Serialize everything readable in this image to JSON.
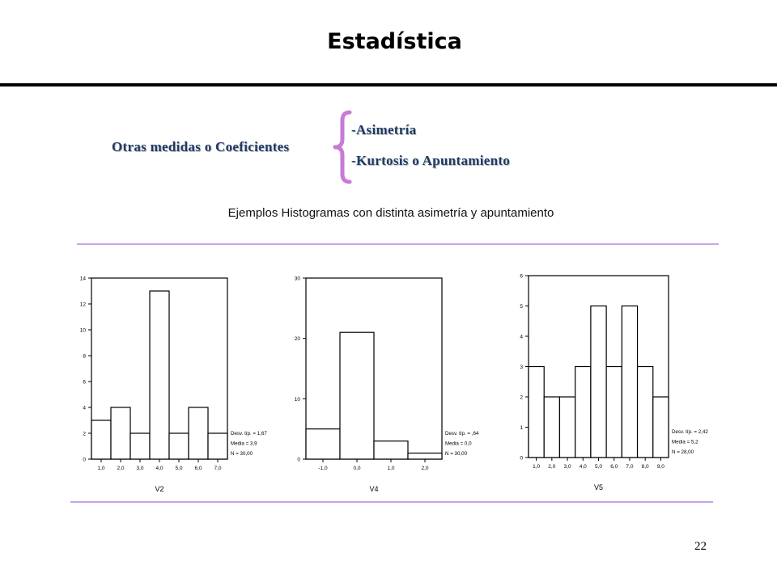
{
  "slide": {
    "title": "Estadística",
    "measures_label": "Otras medidas o Coeficientes",
    "items": [
      "-Asimetría",
      "-Kurtosis o Apuntamiento"
    ],
    "subtitle": "Ejemplos Histogramas con distinta asimetría y apuntamiento",
    "page_number": "22",
    "colors": {
      "text_blue": "#1f3a66",
      "brace": "#c77ad8",
      "rule": "#c9a3e8"
    }
  },
  "chart_data": [
    {
      "type": "bar",
      "title": "",
      "xlabel": "V2",
      "ylabel": "",
      "categories": [
        "1,0",
        "2,0",
        "3,0",
        "4,0",
        "5,0",
        "6,0",
        "7,0"
      ],
      "values": [
        3,
        4,
        2,
        13,
        2,
        4,
        2
      ],
      "ylim": [
        0,
        14
      ],
      "yticks": [
        0,
        2,
        4,
        6,
        8,
        10,
        12,
        14
      ],
      "ytick_labels": [
        "0",
        "2",
        "4",
        "6",
        "8",
        "10",
        "12",
        "14"
      ],
      "grid": false,
      "stats": [
        "Desv. típ. = 1,67",
        "Media = 3,9",
        "N = 30,00"
      ]
    },
    {
      "type": "bar",
      "title": "",
      "xlabel": "V4",
      "ylabel": "",
      "categories": [
        "-1,0",
        "0,0",
        "1,0",
        "2,0"
      ],
      "values": [
        5,
        21,
        3,
        1
      ],
      "ylim": [
        0,
        30
      ],
      "yticks": [
        0,
        10,
        20,
        30
      ],
      "ytick_labels": [
        "0",
        "10",
        "20",
        "30"
      ],
      "grid": false,
      "stats": [
        "Desv. típ. = ,64",
        "Media = 0,0",
        "N = 30,00"
      ]
    },
    {
      "type": "bar",
      "title": "",
      "xlabel": "V5",
      "ylabel": "",
      "categories": [
        "1,0",
        "2,0",
        "3,0",
        "4,0",
        "5,0",
        "6,0",
        "7,0",
        "8,0",
        "9,0"
      ],
      "values": [
        3,
        2,
        2,
        3,
        5,
        3,
        5,
        3,
        2
      ],
      "ylim": [
        0,
        6
      ],
      "yticks": [
        0,
        1,
        2,
        3,
        4,
        5,
        6
      ],
      "ytick_labels": [
        "0",
        "1",
        "2",
        "3",
        "4",
        "5",
        "6"
      ],
      "grid": false,
      "stats": [
        "Desv. típ. = 2,42",
        "Media = 5,2",
        "N = 28,00"
      ]
    }
  ]
}
